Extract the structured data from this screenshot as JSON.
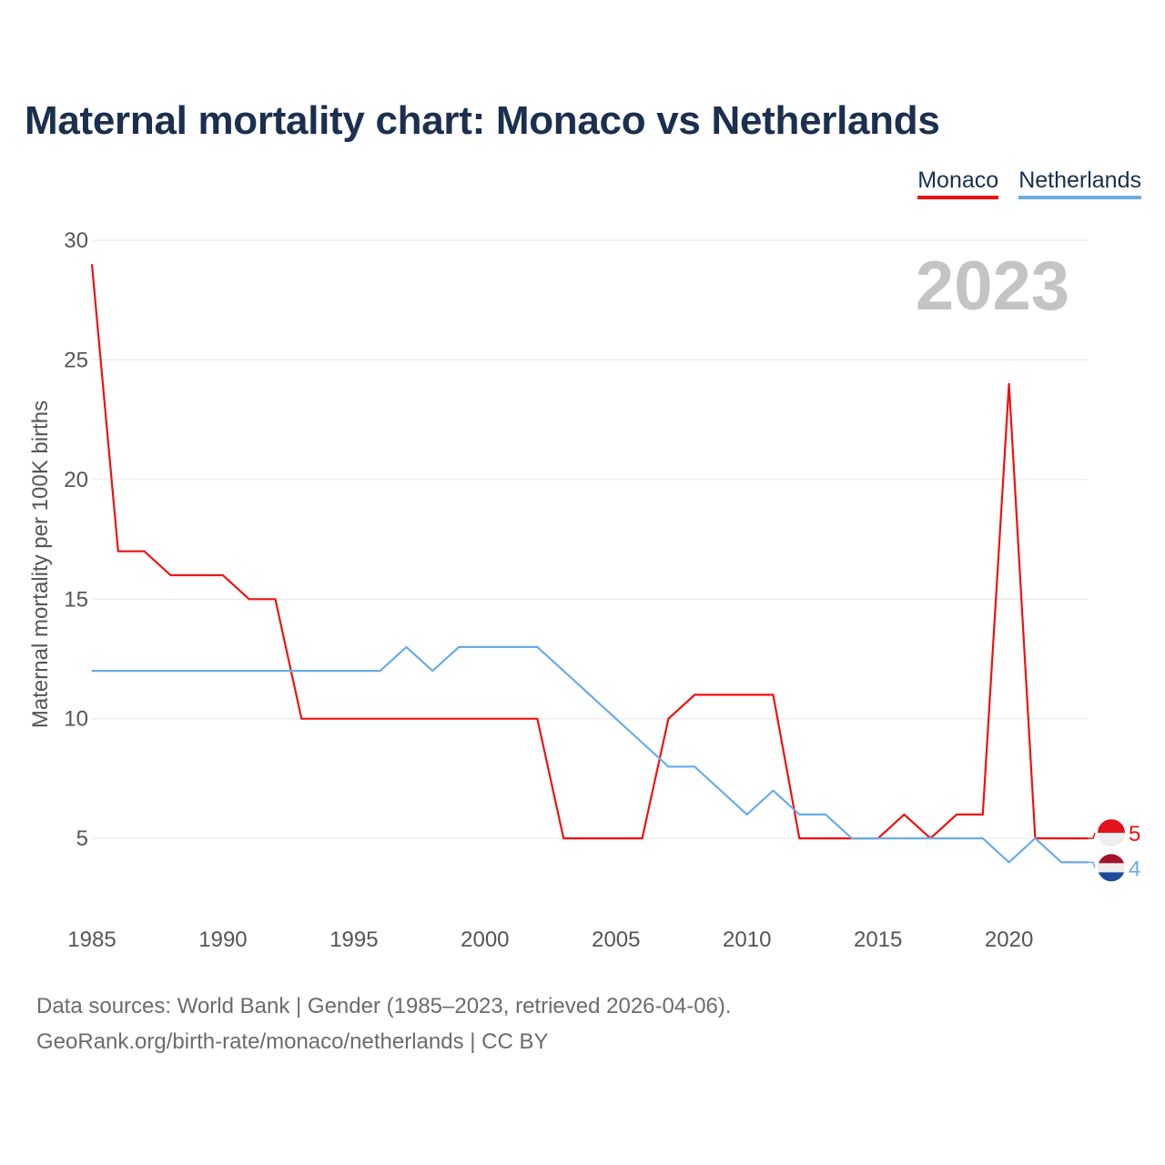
{
  "title": "Maternal mortality chart: Monaco vs Netherlands",
  "legend": [
    {
      "label": "Monaco",
      "color": "#ee1111"
    },
    {
      "label": "Netherlands",
      "color": "#6aace6"
    }
  ],
  "year_label": "2023",
  "footer": {
    "line1": "Data sources: World Bank | Gender (1985–2023, retrieved 2026-04-06).",
    "line2": "GeoRank.org/birth-rate/monaco/netherlands | CC BY"
  },
  "chart_data": {
    "type": "line",
    "title": "Maternal mortality chart: Monaco vs Netherlands",
    "xlabel": "",
    "ylabel": "Maternal mortality per 100K births",
    "x": [
      1985,
      1986,
      1987,
      1988,
      1989,
      1990,
      1991,
      1992,
      1993,
      1994,
      1995,
      1996,
      1997,
      1998,
      1999,
      2000,
      2001,
      2002,
      2003,
      2004,
      2005,
      2006,
      2007,
      2008,
      2009,
      2010,
      2011,
      2012,
      2013,
      2014,
      2015,
      2016,
      2017,
      2018,
      2019,
      2020,
      2021,
      2022,
      2023
    ],
    "xlim": [
      1985,
      2023
    ],
    "ylim": [
      2,
      30
    ],
    "xticks": [
      1985,
      1990,
      1995,
      2000,
      2005,
      2010,
      2015,
      2020
    ],
    "yticks": [
      5,
      10,
      15,
      20,
      25,
      30
    ],
    "grid": true,
    "legend_position": "top-right",
    "series": [
      {
        "name": "Monaco",
        "color": "#ee1111",
        "end_label": "5",
        "values": [
          29,
          17,
          17,
          16,
          16,
          16,
          15,
          15,
          10,
          10,
          10,
          10,
          10,
          10,
          10,
          10,
          10,
          10,
          5,
          5,
          5,
          5,
          10,
          11,
          11,
          11,
          11,
          5,
          5,
          5,
          5,
          6,
          5,
          6,
          6,
          24,
          5,
          5,
          5
        ]
      },
      {
        "name": "Netherlands",
        "color": "#6aace6",
        "end_label": "4",
        "values": [
          12,
          12,
          12,
          12,
          12,
          12,
          12,
          12,
          12,
          12,
          12,
          12,
          13,
          12,
          13,
          13,
          13,
          13,
          12,
          11,
          10,
          9,
          8,
          8,
          7,
          6,
          7,
          6,
          6,
          5,
          5,
          5,
          5,
          5,
          5,
          4,
          5,
          4,
          4
        ]
      }
    ]
  }
}
